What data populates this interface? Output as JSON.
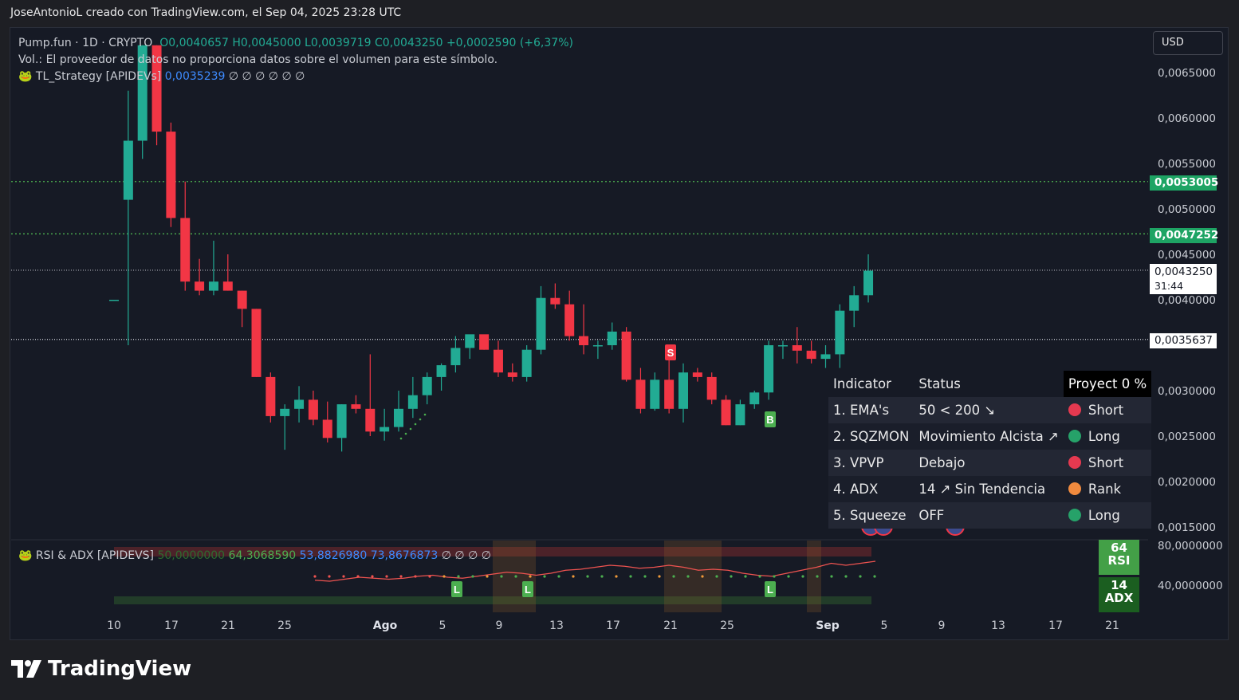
{
  "header": {
    "attribution": "JoseAntonioL creado con TradingView.com, el Sep 04, 2025 23:28 UTC"
  },
  "legend": {
    "symbol": "Pump.fun · 1D · CRYPTO",
    "ohlc": "O0,0040657  H0,0045000  L0,0039719  C0,0043250  +0,0002590 (+6,37%)",
    "volume_note": "Vol.: El proveedor de datos no proporciona datos sobre el volumen para este símbolo.",
    "strategy_name": "TL_Strategy [APIDEVs]",
    "strategy_value": "0,0035239",
    "strategy_nulls": "∅ ∅ ∅ ∅ ∅ ∅"
  },
  "currency_button": "USD",
  "y_axis": {
    "ticks": [
      "0,0065000",
      "0,0060000",
      "0,0055000",
      "0,0050000",
      "0,0045000",
      "0,0040000",
      "0,0030000",
      "0,0025000",
      "0,0020000",
      "0,0015000"
    ],
    "price_labels": {
      "resistance_1": "0,0053005",
      "resistance_2": "0,0047252",
      "current": "0,0043250",
      "countdown": "31:44",
      "support": "0,0035637"
    }
  },
  "x_axis": {
    "ticks": [
      "10",
      "17",
      "21",
      "25",
      "Ago",
      "5",
      "9",
      "13",
      "17",
      "21",
      "25",
      "Sep",
      "5",
      "9",
      "13",
      "17",
      "21"
    ]
  },
  "indicator_table": {
    "headers": [
      "Indicator",
      "Status",
      "Proyect 0 %"
    ],
    "rows": [
      {
        "name": "1. EMA's",
        "status": "50 < 200 ↘",
        "signal": "Short",
        "color": "#e53950"
      },
      {
        "name": "2. SQZMON",
        "status": "Movimiento Alcista ↗",
        "signal": "Long",
        "color": "#26a269"
      },
      {
        "name": "3. VPVP",
        "status": "Debajo",
        "signal": "Short",
        "color": "#e53950"
      },
      {
        "name": "4. ADX",
        "status": "14 ↗ Sin Tendencia",
        "signal": "Rank",
        "color": "#f08a3e"
      },
      {
        "name": "5. Squeeze",
        "status": "OFF",
        "signal": "Long",
        "color": "#26a269"
      }
    ]
  },
  "markers": {
    "sell": "S",
    "buy": "B",
    "long": "L"
  },
  "sub_indicator": {
    "name": "RSI & ADX [APIDEVS]",
    "v1": "50,0000000",
    "v2": "64,3068590",
    "v3": "53,8826980",
    "v4": "73,8676873",
    "nulls": "∅ ∅ ∅ ∅",
    "y_ticks": [
      "80,0000000",
      "40,0000000"
    ],
    "rsi_value": "64",
    "rsi_label": "RSI",
    "adx_value": "14",
    "adx_label": "ADX"
  },
  "brand": "TradingView",
  "chart_data": {
    "type": "candlestick",
    "title": "Pump.fun · 1D · CRYPTO",
    "currency": "USD",
    "ylim": [
      0.0014,
      0.0068
    ],
    "start_date": "2025-07-09",
    "candles": [
      [
        0.004,
        0.004,
        0.004,
        0.004
      ],
      [
        0.0051,
        0.0063,
        0.0035,
        0.00575
      ],
      [
        0.00575,
        0.0068,
        0.00555,
        0.0068
      ],
      [
        0.0068,
        0.0068,
        0.0057,
        0.00585
      ],
      [
        0.00585,
        0.00595,
        0.0048,
        0.0049
      ],
      [
        0.0049,
        0.0053,
        0.0041,
        0.0042
      ],
      [
        0.0042,
        0.00445,
        0.00405,
        0.0041
      ],
      [
        0.0041,
        0.00465,
        0.00405,
        0.0042
      ],
      [
        0.0042,
        0.0045,
        0.0041,
        0.0041
      ],
      [
        0.0041,
        0.0041,
        0.0037,
        0.0039
      ],
      [
        0.0039,
        0.0039,
        0.00315,
        0.00315
      ],
      [
        0.00315,
        0.0032,
        0.00265,
        0.00272
      ],
      [
        0.00272,
        0.00285,
        0.00235,
        0.0028
      ],
      [
        0.0028,
        0.00305,
        0.00265,
        0.0029
      ],
      [
        0.0029,
        0.003,
        0.00262,
        0.00268
      ],
      [
        0.00268,
        0.00288,
        0.00243,
        0.00248
      ],
      [
        0.00248,
        0.00285,
        0.00233,
        0.00285
      ],
      [
        0.00285,
        0.00295,
        0.00275,
        0.0028
      ],
      [
        0.0028,
        0.0034,
        0.0025,
        0.00255
      ],
      [
        0.00255,
        0.0028,
        0.00245,
        0.0026
      ],
      [
        0.0026,
        0.003,
        0.00255,
        0.0028
      ],
      [
        0.0028,
        0.00315,
        0.0027,
        0.00295
      ],
      [
        0.00295,
        0.0032,
        0.00285,
        0.00315
      ],
      [
        0.00315,
        0.0033,
        0.003,
        0.00328
      ],
      [
        0.00328,
        0.0036,
        0.0032,
        0.00347
      ],
      [
        0.00347,
        0.0036,
        0.00335,
        0.00362
      ],
      [
        0.00362,
        0.0036,
        0.00345,
        0.00345
      ],
      [
        0.00345,
        0.00355,
        0.00315,
        0.0032
      ],
      [
        0.0032,
        0.0033,
        0.0031,
        0.00315
      ],
      [
        0.00315,
        0.0035,
        0.0031,
        0.00345
      ],
      [
        0.00345,
        0.00415,
        0.0034,
        0.00402
      ],
      [
        0.00402,
        0.00418,
        0.0039,
        0.00395
      ],
      [
        0.00395,
        0.0041,
        0.00355,
        0.0036
      ],
      [
        0.0036,
        0.00395,
        0.0034,
        0.0035
      ],
      [
        0.0035,
        0.00355,
        0.00335,
        0.0035
      ],
      [
        0.0035,
        0.00375,
        0.00345,
        0.00365
      ],
      [
        0.00365,
        0.0037,
        0.0031,
        0.00312
      ],
      [
        0.00312,
        0.00325,
        0.00275,
        0.0028
      ],
      [
        0.0028,
        0.0032,
        0.00278,
        0.00312
      ],
      [
        0.00312,
        0.00335,
        0.00275,
        0.0028
      ],
      [
        0.0028,
        0.0033,
        0.00265,
        0.0032
      ],
      [
        0.0032,
        0.00325,
        0.0031,
        0.00315
      ],
      [
        0.00315,
        0.0032,
        0.00285,
        0.0029
      ],
      [
        0.0029,
        0.00295,
        0.00262,
        0.00262
      ],
      [
        0.00262,
        0.0029,
        0.00262,
        0.00285
      ],
      [
        0.00285,
        0.003,
        0.0028,
        0.00298
      ],
      [
        0.00298,
        0.00355,
        0.0029,
        0.0035
      ],
      [
        0.0035,
        0.00355,
        0.00335,
        0.0035
      ],
      [
        0.0035,
        0.0037,
        0.0033,
        0.00344
      ],
      [
        0.00344,
        0.00355,
        0.0033,
        0.00335
      ],
      [
        0.00335,
        0.0035,
        0.00325,
        0.0034
      ],
      [
        0.0034,
        0.00395,
        0.00325,
        0.00388
      ],
      [
        0.00388,
        0.00415,
        0.0037,
        0.00405
      ],
      [
        0.00405,
        0.0045,
        0.00397,
        0.00432
      ]
    ],
    "horizontal_levels": [
      0.0053005,
      0.0047252,
      0.004325,
      0.0035637
    ],
    "rsi": [
      45,
      44,
      46,
      48,
      47,
      46,
      47,
      49,
      50,
      48,
      47,
      49,
      51,
      53,
      52,
      50,
      52,
      55,
      56,
      58,
      60,
      59,
      57,
      58,
      60,
      58,
      55,
      56,
      55,
      52,
      50,
      49,
      52,
      55,
      58,
      62,
      60,
      62,
      64
    ]
  }
}
